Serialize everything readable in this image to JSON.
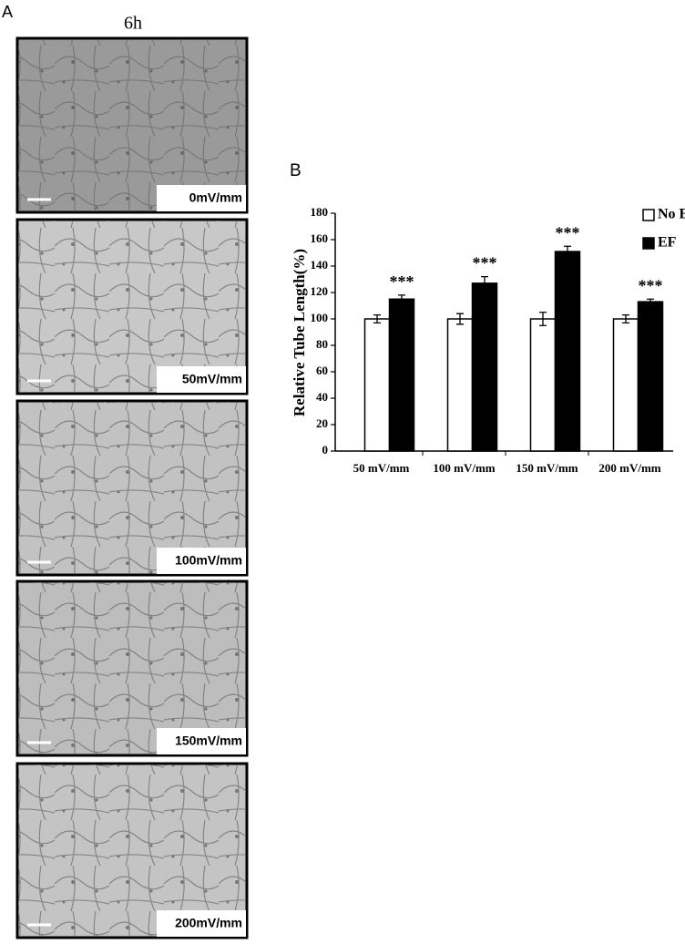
{
  "panel_a": {
    "label": "A",
    "time": "6h",
    "images": [
      {
        "label": "0mV/mm"
      },
      {
        "label": "50mV/mm"
      },
      {
        "label": "100mV/mm"
      },
      {
        "label": "150mV/mm"
      },
      {
        "label": "200mV/mm"
      }
    ]
  },
  "chart_data": {
    "type": "bar",
    "panel_label": "B",
    "y_label": "Relative Tube Length(%)",
    "categories": [
      "50 mV/mm",
      "100 mV/mm",
      "150 mV/mm",
      "200 mV/mm"
    ],
    "series": [
      {
        "name": "No EF",
        "color": "#ffffff",
        "values": [
          100,
          100,
          100,
          100
        ],
        "errors": [
          3,
          4,
          5,
          3
        ]
      },
      {
        "name": "EF",
        "color": "#000000",
        "values": [
          115,
          127,
          151,
          113
        ],
        "errors": [
          3,
          5,
          4,
          2
        ]
      }
    ],
    "annotations": [
      "***",
      "***",
      "***",
      "***"
    ],
    "ylim": [
      0,
      180
    ],
    "yticks": [
      0,
      20,
      40,
      60,
      80,
      100,
      120,
      140,
      160,
      180
    ],
    "legend": "top-right"
  }
}
